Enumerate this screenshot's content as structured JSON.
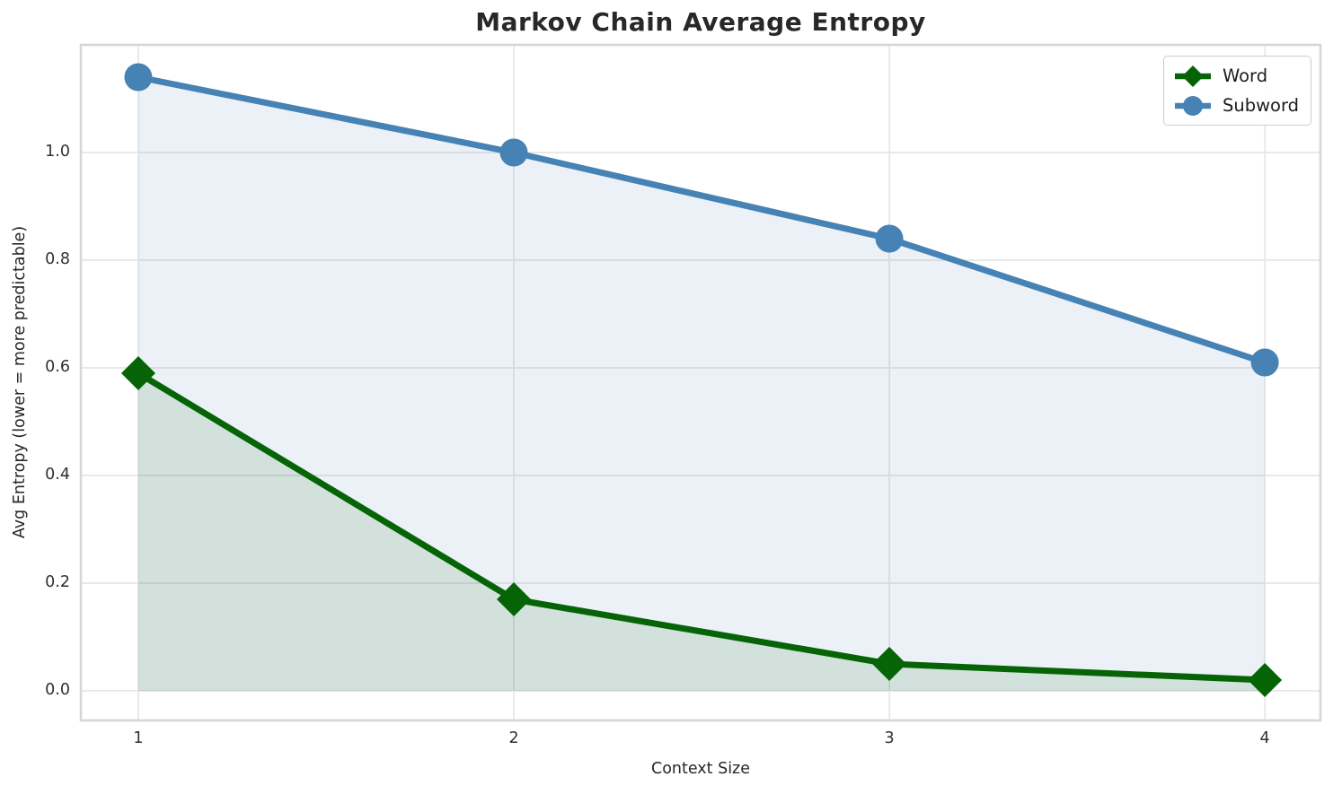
{
  "chart_data": {
    "type": "line",
    "title": "Markov Chain Average Entropy",
    "xlabel": "Context Size",
    "ylabel": "Avg Entropy (lower = more predictable)",
    "x": [
      1,
      2,
      3,
      4
    ],
    "series": [
      {
        "name": "Word",
        "values": [
          0.59,
          0.17,
          0.05,
          0.02
        ],
        "color": "#066406",
        "marker": "diamond",
        "fill": true
      },
      {
        "name": "Subword",
        "values": [
          1.14,
          1.0,
          0.84,
          0.61
        ],
        "color": "#4682B4",
        "marker": "circle",
        "fill": true
      }
    ],
    "fill_baseline": 0,
    "fill_alpha": 0.11,
    "xticks": [
      "1",
      "2",
      "3",
      "4"
    ],
    "yticks": [
      "0.0",
      "0.2",
      "0.4",
      "0.6",
      "0.8",
      "1.0"
    ],
    "xlim": [
      0.847,
      4.148
    ],
    "ylim": [
      -0.055,
      1.2
    ],
    "grid": true,
    "grid_color": "#e9e9e9",
    "spine_color": "#d6d6d6",
    "legend_position": "upper right",
    "legend_labels": [
      "Word",
      "Subword"
    ]
  }
}
